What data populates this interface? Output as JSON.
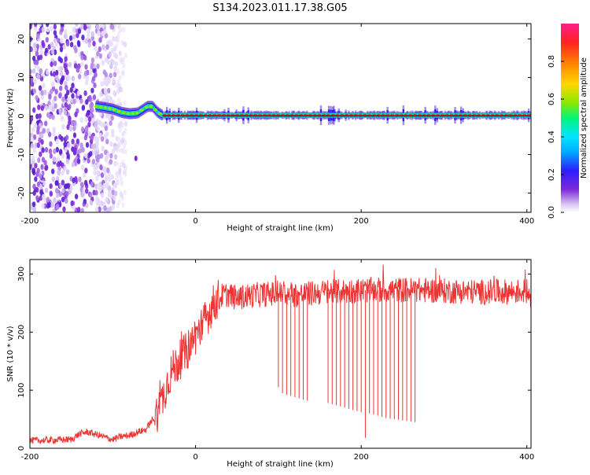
{
  "title": "S134.2023.011.17.38.G05",
  "chart_data": [
    {
      "type": "heatmap",
      "xlabel": "Height of straight line (km)",
      "ylabel": "Frequency (Hz)",
      "xlim": [
        -200,
        405
      ],
      "ylim": [
        -25,
        24
      ],
      "x_ticks": [
        -200,
        0,
        200,
        400
      ],
      "y_ticks": [
        -20,
        -10,
        0,
        10,
        20
      ],
      "colorbar": {
        "label": "Normalized spectral amplitude",
        "range": [
          0,
          1
        ],
        "ticks": [
          0.0,
          0.2,
          0.4,
          0.6,
          0.8
        ],
        "tick_labels": [
          "0.0",
          "0.2",
          "0.4",
          "0.6",
          "0.8"
        ],
        "colors": [
          "#ffffff",
          "#dccbf5",
          "#7d2bd8",
          "#2f1bff",
          "#00e5ff",
          "#00f57a",
          "#8ae800",
          "#ffd700",
          "#ff8a00",
          "#ff2222",
          "#ff1e8a"
        ]
      },
      "noise_region": {
        "x_range": [
          -200,
          -122
        ],
        "amplitude": "0.05-0.3"
      },
      "frequency_track": [
        {
          "x": -120,
          "y": 2.5
        },
        {
          "x": -110,
          "y": 2.2
        },
        {
          "x": -100,
          "y": 1.8
        },
        {
          "x": -90,
          "y": 1.0
        },
        {
          "x": -80,
          "y": 0.6
        },
        {
          "x": -70,
          "y": 0.8
        },
        {
          "x": -65,
          "y": 1.5
        },
        {
          "x": -58,
          "y": 2.5
        },
        {
          "x": -52,
          "y": 2.5
        },
        {
          "x": -46,
          "y": 1.0
        },
        {
          "x": -40,
          "y": 0.2
        },
        {
          "x": 0,
          "y": 0.2
        },
        {
          "x": 400,
          "y": 0.2
        }
      ],
      "reference_line": {
        "y": 0
      }
    },
    {
      "type": "line",
      "xlabel": "Height of straight line (km)",
      "ylabel": "SNR (10 * v/v)",
      "xlim": [
        -200,
        405
      ],
      "ylim": [
        0,
        325
      ],
      "x_ticks": [
        -200,
        0,
        200,
        400
      ],
      "y_ticks": [
        0,
        100,
        200,
        300
      ],
      "series": [
        {
          "color": "#ee3333",
          "x": [
            -200,
            -150,
            -140,
            -130,
            -100,
            -90,
            -80,
            -70,
            -60,
            -50,
            -45,
            -40,
            -35,
            -30,
            -20,
            -10,
            0,
            10,
            20,
            30,
            40,
            50,
            60,
            80,
            100,
            120,
            150,
            200,
            250,
            300,
            350,
            400,
            405
          ],
          "y": [
            13,
            15,
            25,
            28,
            15,
            20,
            22,
            28,
            32,
            55,
            65,
            85,
            110,
            130,
            150,
            168,
            195,
            215,
            245,
            262,
            265,
            258,
            262,
            265,
            266,
            264,
            268,
            272,
            273,
            271,
            269,
            270,
            262
          ]
        }
      ],
      "dropouts": [
        {
          "x": 100,
          "y": 105
        },
        {
          "x": 105,
          "y": 95
        },
        {
          "x": 110,
          "y": 92
        },
        {
          "x": 115,
          "y": 90
        },
        {
          "x": 120,
          "y": 88
        },
        {
          "x": 125,
          "y": 86
        },
        {
          "x": 130,
          "y": 84
        },
        {
          "x": 135,
          "y": 82
        },
        {
          "x": 160,
          "y": 78
        },
        {
          "x": 165,
          "y": 76
        },
        {
          "x": 170,
          "y": 74
        },
        {
          "x": 175,
          "y": 72
        },
        {
          "x": 180,
          "y": 70
        },
        {
          "x": 185,
          "y": 68
        },
        {
          "x": 190,
          "y": 66
        },
        {
          "x": 195,
          "y": 64
        },
        {
          "x": 200,
          "y": 62
        },
        {
          "x": 205,
          "y": 18
        },
        {
          "x": 210,
          "y": 60
        },
        {
          "x": 215,
          "y": 58
        },
        {
          "x": 220,
          "y": 56
        },
        {
          "x": 225,
          "y": 54
        },
        {
          "x": 230,
          "y": 52
        },
        {
          "x": 235,
          "y": 51
        },
        {
          "x": 240,
          "y": 50
        },
        {
          "x": 245,
          "y": 49
        },
        {
          "x": 250,
          "y": 48
        },
        {
          "x": 255,
          "y": 47
        },
        {
          "x": 260,
          "y": 46
        },
        {
          "x": 265,
          "y": 45
        }
      ]
    }
  ]
}
